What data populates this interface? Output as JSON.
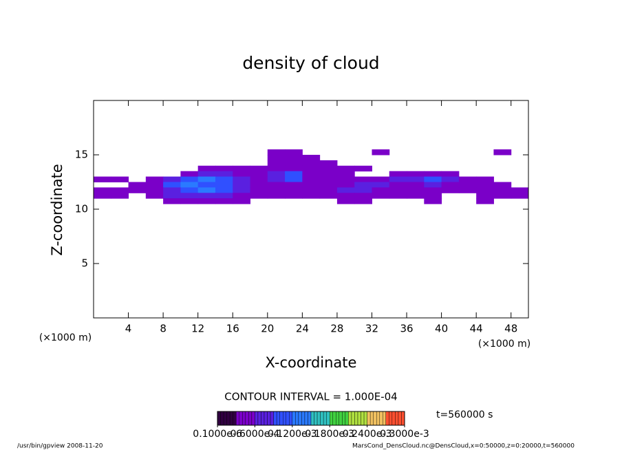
{
  "chart_data": {
    "type": "contour",
    "title": "density of cloud",
    "xlabel": "X-coordinate",
    "ylabel": "Z-coordinate",
    "xunit_left": "(×1000 m)",
    "xunit_right": "(×1000 m)",
    "xlim": [
      0,
      50
    ],
    "ylim": [
      0,
      20
    ],
    "xticks": [
      4,
      8,
      12,
      16,
      20,
      24,
      28,
      32,
      36,
      40,
      44,
      48
    ],
    "yticks": [
      5,
      10,
      15
    ],
    "x": [
      1,
      3,
      5,
      7,
      9,
      11,
      13,
      15,
      17,
      19,
      21,
      23,
      25,
      27,
      29,
      31,
      33,
      35,
      37,
      39,
      41,
      43,
      45,
      47,
      49
    ],
    "z": [
      15.25,
      14.75,
      14.25,
      13.75,
      13.25,
      12.75,
      12.25,
      11.75,
      11.25,
      10.75
    ],
    "values": [
      [
        0,
        0,
        0,
        0,
        0,
        0,
        0,
        0,
        0,
        0,
        3e-05,
        3e-05,
        0,
        0,
        0,
        0,
        3e-05,
        0,
        0,
        0,
        0,
        0,
        0,
        3e-05,
        0
      ],
      [
        0,
        0,
        0,
        0,
        0,
        0,
        0,
        0,
        0,
        0,
        3e-05,
        3e-05,
        3e-05,
        0,
        0,
        0,
        0,
        0,
        0,
        0,
        0,
        0,
        0,
        0,
        0
      ],
      [
        0,
        0,
        0,
        0,
        0,
        0,
        0,
        0,
        0,
        0,
        3e-05,
        3e-05,
        3e-05,
        3e-05,
        0,
        0,
        0,
        0,
        0,
        0,
        0,
        0,
        0,
        0,
        0
      ],
      [
        0,
        0,
        0,
        0,
        0,
        0,
        3e-05,
        3e-05,
        3e-05,
        3e-05,
        3e-05,
        3e-05,
        3e-05,
        3e-05,
        3e-05,
        3e-05,
        0,
        0,
        0,
        0,
        0,
        0,
        0,
        0,
        0
      ],
      [
        0,
        0,
        0,
        0,
        0,
        3e-05,
        6e-05,
        6e-05,
        3e-05,
        3e-05,
        6e-05,
        0.0001,
        3e-05,
        3e-05,
        3e-05,
        0,
        0,
        3e-05,
        3e-05,
        3e-05,
        3e-05,
        0,
        0,
        0,
        0
      ],
      [
        3e-05,
        3e-05,
        0,
        3e-05,
        6e-05,
        0.0001,
        0.00013,
        0.0001,
        6e-05,
        3e-05,
        6e-05,
        0.0001,
        3e-05,
        3e-05,
        3e-05,
        3e-05,
        3e-05,
        6e-05,
        6e-05,
        0.0001,
        6e-05,
        3e-05,
        3e-05,
        0,
        0
      ],
      [
        0,
        0,
        3e-05,
        3e-05,
        0.0001,
        0.00013,
        0.0001,
        0.0001,
        6e-05,
        3e-05,
        3e-05,
        3e-05,
        3e-05,
        3e-05,
        3e-05,
        6e-05,
        6e-05,
        3e-05,
        3e-05,
        6e-05,
        3e-05,
        3e-05,
        3e-05,
        3e-05,
        0
      ],
      [
        3e-05,
        3e-05,
        3e-05,
        3e-05,
        6e-05,
        0.0001,
        0.00013,
        0.0001,
        6e-05,
        3e-05,
        3e-05,
        3e-05,
        3e-05,
        3e-05,
        6e-05,
        6e-05,
        3e-05,
        3e-05,
        3e-05,
        3e-05,
        3e-05,
        3e-05,
        3e-05,
        3e-05,
        3e-05
      ],
      [
        3e-05,
        3e-05,
        0,
        3e-05,
        6e-05,
        6e-05,
        6e-05,
        6e-05,
        3e-05,
        3e-05,
        3e-05,
        3e-05,
        3e-05,
        3e-05,
        3e-05,
        3e-05,
        3e-05,
        3e-05,
        3e-05,
        3e-05,
        0,
        0,
        3e-05,
        3e-05,
        3e-05
      ],
      [
        0,
        0,
        0,
        0,
        3e-05,
        3e-05,
        3e-05,
        3e-05,
        3e-05,
        0,
        0,
        0,
        0,
        0,
        3e-05,
        3e-05,
        0,
        0,
        0,
        3e-05,
        0,
        0,
        3e-05,
        0,
        0
      ]
    ],
    "colors": [
      "#300040",
      "#7a00c8",
      "#5a20e0",
      "#3050ff",
      "#2a7aff",
      "#30c0c0",
      "#40d040",
      "#b0e040",
      "#f0c060",
      "#ff5030"
    ],
    "clim": [
      0,
      0.0003
    ],
    "cticks": [
      {
        "value": 1e-07,
        "label": "0.1000e-6"
      },
      {
        "value": 6e-05,
        "label": "0.6000e-4"
      },
      {
        "value": 0.00012,
        "label": "0.1200e-3"
      },
      {
        "value": 0.00018,
        "label": "0.1800e-3"
      },
      {
        "value": 0.00024,
        "label": "0.2400e-3"
      },
      {
        "value": 0.0003,
        "label": "0.3000e-3"
      }
    ],
    "contour_interval": "CONTOUR INTERVAL = 1.000E-04",
    "time_label": "t=560000 s",
    "footer_left": "/usr/bin/gpview  2008-11-20",
    "footer_right": "MarsCond_DensCloud.nc@DensCloud,x=0:50000,z=0:20000,t=560000"
  }
}
